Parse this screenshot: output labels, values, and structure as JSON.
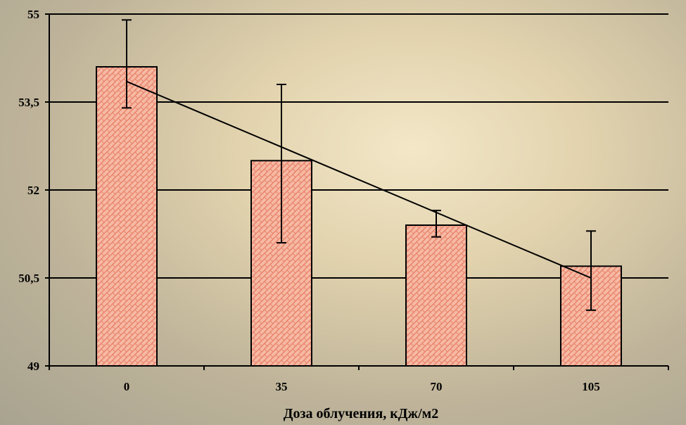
{
  "chart_data": {
    "type": "bar",
    "title": "",
    "xlabel": "Доза облучения, кДж/м2",
    "ylabel": "",
    "categories": [
      "0",
      "35",
      "70",
      "105"
    ],
    "values": [
      54.1,
      52.5,
      51.4,
      50.7
    ],
    "error_low": [
      53.4,
      51.1,
      51.2,
      49.95
    ],
    "error_high": [
      54.9,
      53.8,
      51.65,
      51.3
    ],
    "trendline": {
      "start": 53.85,
      "end": 50.5
    },
    "ylim": [
      49,
      55
    ],
    "yticks": [
      "49",
      "50,5",
      "52",
      "53,5",
      "55"
    ],
    "ytick_values": [
      49,
      50.5,
      52,
      53.5,
      55
    ],
    "grid": true,
    "legend": "none",
    "colors": {
      "bar_fill": "#f6b9a4",
      "bar_pattern": "#e8836a",
      "axis": "#000000"
    }
  }
}
